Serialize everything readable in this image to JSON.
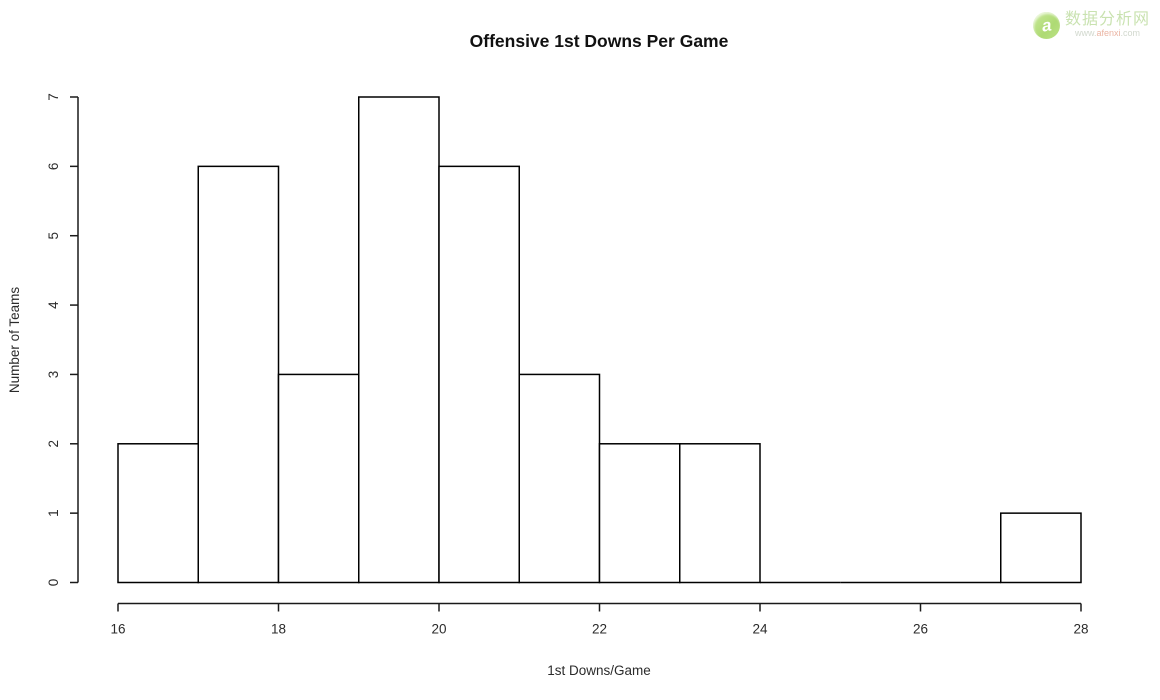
{
  "page": {
    "background": "#ffffff"
  },
  "watermark": {
    "icon_letter": "a",
    "site_name": "数据分析网",
    "url_prefix": "www.",
    "url_domain": "afenxi",
    "url_suffix": ".com",
    "brand_green": "#9ccf4c",
    "text_green": "#b7d996",
    "url_gray": "#c2cbbd",
    "url_orange": "#e49b84"
  },
  "chart_data": {
    "type": "bar",
    "subtype": "histogram",
    "title": "Offensive 1st Downs Per Game",
    "xlabel": "1st Downs/Game",
    "ylabel": "Number of Teams",
    "xlim": [
      16,
      28
    ],
    "ylim": [
      0,
      7
    ],
    "x_ticks": [
      16,
      18,
      20,
      22,
      24,
      26,
      28
    ],
    "y_ticks": [
      0,
      1,
      2,
      3,
      4,
      5,
      6,
      7
    ],
    "bin_edges": [
      16,
      17,
      18,
      19,
      20,
      21,
      22,
      23,
      24,
      25,
      26,
      27,
      28
    ],
    "counts": [
      2,
      6,
      3,
      7,
      6,
      3,
      2,
      2,
      0,
      0,
      0,
      1
    ],
    "bar_fill": "#ffffff",
    "bar_stroke": "#000000",
    "axis_color": "#1a1a1a",
    "text_color": "#2b2b2b",
    "grid": false,
    "legend": null
  }
}
